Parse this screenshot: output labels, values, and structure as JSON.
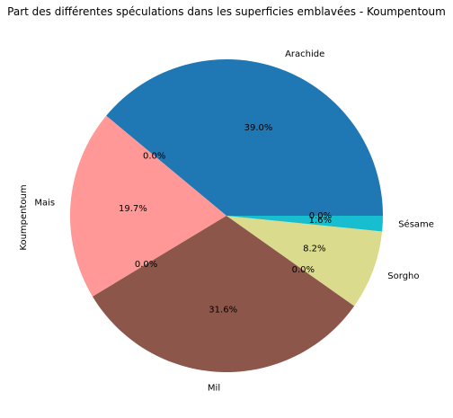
{
  "chart_data": {
    "type": "pie",
    "title": "Part des différentes spéculations dans les superficies emblavées - Koumpentoum",
    "ylabel": "Koumpentoum",
    "start_angle_deg": 0,
    "direction": "counterclockwise",
    "slices": [
      {
        "label": "Arachide",
        "value": 39.0,
        "pct_label": "39.0%",
        "color": "#1f77b4"
      },
      {
        "label": "",
        "value": 0.0,
        "pct_label": "0.0%",
        "color": "#aec7e8"
      },
      {
        "label": "Mais",
        "value": 19.7,
        "pct_label": "19.7%",
        "color": "#ff9896"
      },
      {
        "label": "",
        "value": 0.0,
        "pct_label": "0.0%",
        "color": "#c5b0d5"
      },
      {
        "label": "Mil",
        "value": 31.6,
        "pct_label": "31.6%",
        "color": "#8c564b"
      },
      {
        "label": "",
        "value": 0.0,
        "pct_label": "0.0%",
        "color": "#e377c2"
      },
      {
        "label": "Sorgho",
        "value": 8.2,
        "pct_label": "8.2%",
        "color": "#dbdb8d"
      },
      {
        "label": "Sésame",
        "value": 1.6,
        "pct_label": "1.6%",
        "color": "#17becf"
      },
      {
        "label": "",
        "value": 0.0,
        "pct_label": "0.0%",
        "color": "#9edae5"
      }
    ]
  }
}
